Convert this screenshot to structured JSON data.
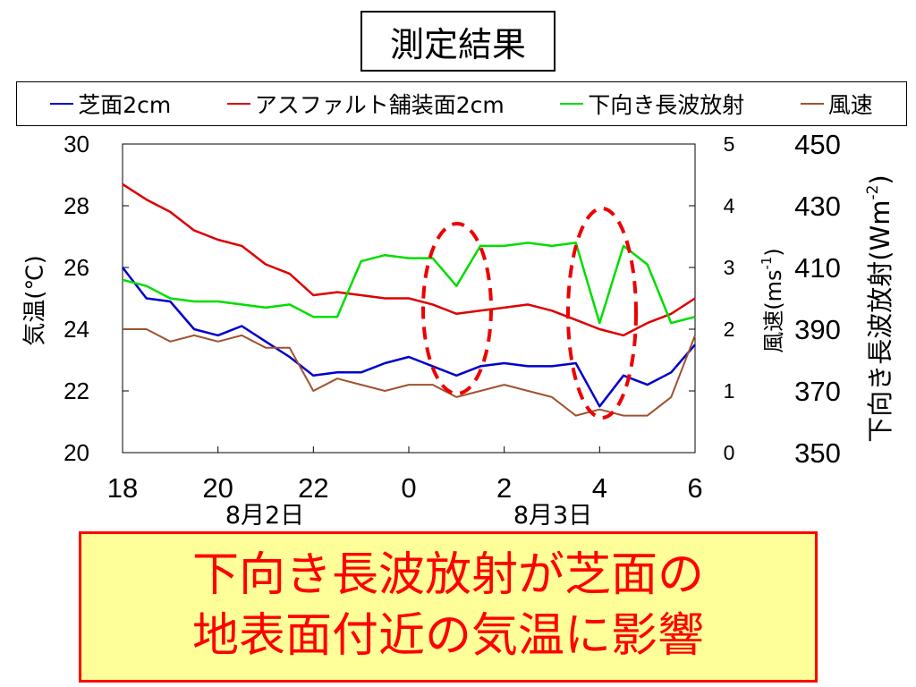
{
  "title": "測定結果",
  "legend": [
    {
      "label": "芝面2cm",
      "color": "#0000cc"
    },
    {
      "label": "アスファルト舗装面2cm",
      "color": "#dd0000"
    },
    {
      "label": "下向き長波放射",
      "color": "#00dd00"
    },
    {
      "label": "風速",
      "color": "#a0522d"
    }
  ],
  "chart_data": {
    "type": "line",
    "x_unit": "hour of day, 8月2日 18:00 to 8月3日 06:00",
    "x_ticks": [
      "18",
      "20",
      "22",
      "0",
      "2",
      "4",
      "6"
    ],
    "date_labels": [
      "8月2日",
      "8月3日"
    ],
    "left_axis": {
      "label": "気温(℃)",
      "range": [
        20,
        30
      ],
      "ticks": [
        "20",
        "22",
        "24",
        "26",
        "28",
        "30"
      ]
    },
    "right_axis_1": {
      "label_main": "風速(ms",
      "label_sup": "-1",
      "label_end": ")",
      "range": [
        0,
        5
      ],
      "ticks": [
        "0",
        "1",
        "2",
        "3",
        "4",
        "5"
      ]
    },
    "right_axis_2": {
      "label_main": "下向き長波放射(Wm",
      "label_sup": "-2",
      "label_end": ")",
      "range": [
        350,
        450
      ],
      "ticks": [
        "350",
        "370",
        "390",
        "410",
        "430",
        "450"
      ]
    },
    "x": [
      18.0,
      18.5,
      19.0,
      19.5,
      20.0,
      20.5,
      21.0,
      21.5,
      22.0,
      22.5,
      23.0,
      23.5,
      24.0,
      24.5,
      25.0,
      25.5,
      26.0,
      26.5,
      27.0,
      27.5,
      28.0,
      28.5,
      29.0,
      29.5,
      30.0
    ],
    "series": [
      {
        "name": "芝面2cm",
        "axis": "left",
        "color": "#0000cc",
        "values": [
          26.0,
          25.0,
          24.9,
          24.0,
          23.8,
          24.1,
          23.6,
          23.1,
          22.5,
          22.6,
          22.6,
          22.9,
          23.1,
          22.8,
          22.5,
          22.8,
          22.9,
          22.8,
          22.8,
          22.9,
          21.5,
          22.5,
          22.2,
          22.6,
          23.5
        ]
      },
      {
        "name": "アスファルト舗装面2cm",
        "axis": "left",
        "color": "#dd0000",
        "values": [
          28.7,
          28.2,
          27.8,
          27.2,
          26.9,
          26.7,
          26.1,
          25.8,
          25.1,
          25.2,
          25.1,
          25.0,
          25.0,
          24.8,
          24.5,
          24.6,
          24.7,
          24.8,
          24.6,
          24.3,
          24.0,
          23.8,
          24.2,
          24.5,
          25.0
        ]
      },
      {
        "name": "下向き長波放射",
        "axis": "right2",
        "color": "#00dd00",
        "values": [
          406,
          404,
          400,
          399,
          399,
          398,
          397,
          398,
          394,
          394,
          412,
          414,
          413,
          413,
          404,
          417,
          417,
          418,
          417,
          418,
          392,
          417,
          411,
          392,
          394
        ]
      },
      {
        "name": "風速",
        "axis": "right1",
        "color": "#a0522d",
        "values": [
          2.0,
          2.0,
          1.8,
          1.9,
          1.8,
          1.9,
          1.7,
          1.7,
          1.0,
          1.2,
          1.1,
          1.0,
          1.1,
          1.1,
          0.9,
          1.0,
          1.1,
          1.0,
          0.9,
          0.6,
          0.7,
          0.6,
          0.6,
          0.9,
          1.9
        ]
      }
    ]
  },
  "message": {
    "line1": "下向き長波放射が芝面の",
    "line2": "地表面付近の気温に影響"
  }
}
